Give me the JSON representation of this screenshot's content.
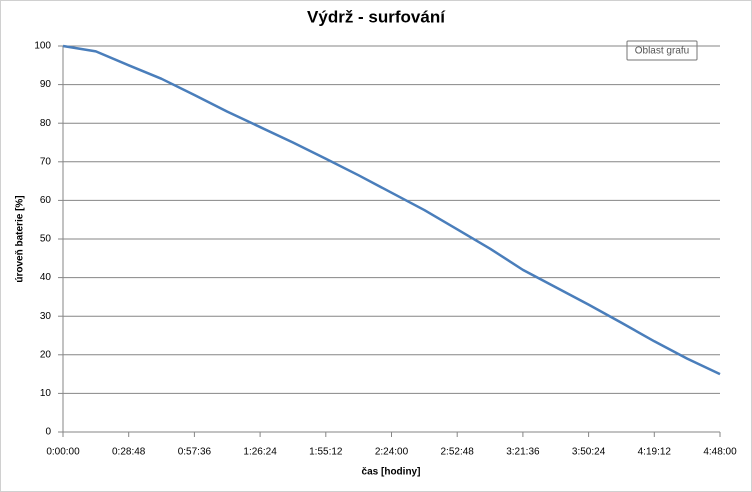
{
  "chart_data": {
    "type": "line",
    "title": "Výdrž - surfování",
    "x_label": "čas [hodiny]",
    "y_label": "úroveň baterie [%]",
    "tooltip": "Oblast grafu",
    "x": [
      0,
      864,
      1728,
      2592,
      3456,
      4320,
      5184,
      6048,
      6912,
      7776,
      8640,
      9504,
      10368,
      11232,
      12096,
      12960,
      13824,
      14688,
      15552,
      16416,
      17280
    ],
    "series": [
      {
        "name": "úroveň baterie",
        "color": "#4a7ebb",
        "values": [
          100,
          98.6,
          95,
          91.5,
          87.3,
          83,
          79,
          75,
          70.8,
          66.5,
          62,
          57.5,
          52.5,
          47.5,
          42,
          37.5,
          33,
          28.3,
          23.5,
          19,
          15
        ]
      }
    ],
    "xlim": [
      0,
      17280
    ],
    "xticks": [
      {
        "value": 0,
        "label": "0:00:00"
      },
      {
        "value": 1728,
        "label": "0:28:48"
      },
      {
        "value": 3456,
        "label": "0:57:36"
      },
      {
        "value": 5184,
        "label": "1:26:24"
      },
      {
        "value": 6912,
        "label": "1:55:12"
      },
      {
        "value": 8640,
        "label": "2:24:00"
      },
      {
        "value": 10368,
        "label": "2:52:48"
      },
      {
        "value": 12096,
        "label": "3:21:36"
      },
      {
        "value": 13824,
        "label": "3:50:24"
      },
      {
        "value": 15552,
        "label": "4:19:12"
      },
      {
        "value": 17280,
        "label": "4:48:00"
      }
    ],
    "ylim": [
      0,
      100
    ],
    "yticks": [
      0,
      10,
      20,
      30,
      40,
      50,
      60,
      70,
      80,
      90,
      100
    ],
    "grid": true
  }
}
